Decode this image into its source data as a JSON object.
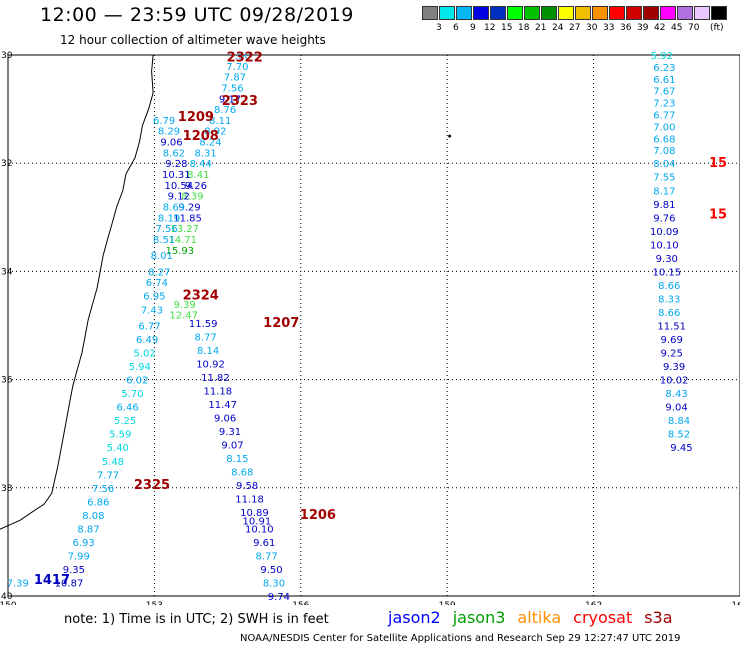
{
  "header": {
    "title": "12:00 — 23:59 UTC 09/28/2019",
    "subtitle": "12 hour collection of altimeter wave heights"
  },
  "colorbar": {
    "colors": [
      "#808080",
      "#00e8e8",
      "#00b8ff",
      "#0000e0",
      "#0030c0",
      "#00ff00",
      "#00c000",
      "#009000",
      "#ffff00",
      "#f0c000",
      "#ff9000",
      "#ff0000",
      "#d00000",
      "#a00000",
      "#ff00ff",
      "#b070e0",
      "#e8c8ff",
      "#000000"
    ],
    "labels": [
      "3",
      "6",
      "9",
      "12",
      "15",
      "18",
      "21",
      "24",
      "27",
      "30",
      "33",
      "36",
      "39",
      "42",
      "45",
      "70"
    ],
    "unit": "(ft)"
  },
  "footer": {
    "note": "note: 1) Time is in UTC; 2) SWH is in feet",
    "credit": "NOAA/NESDIS Center for Satellite Applications and Research   Sep 29 12:27:47 UTC 2019",
    "satellites": [
      {
        "name": "jason2",
        "color": "#0000ff"
      },
      {
        "name": "jason3",
        "color": "#00a000"
      },
      {
        "name": "altika",
        "color": "#ff9000"
      },
      {
        "name": "cryosat",
        "color": "#ff0000"
      },
      {
        "name": "s3a",
        "color": "#a00000"
      }
    ]
  },
  "chart_data": {
    "type": "scatter",
    "title": "12:00 — 23:59 UTC 09/28/2019",
    "subtitle": "12 hour collection of altimeter wave heights",
    "xlim": [
      150,
      165
    ],
    "ylim": [
      -40,
      -30
    ],
    "x_ticks": [
      "150",
      "153",
      "156",
      "159",
      "162",
      "165"
    ],
    "y_ticks": [
      "-30",
      "-32",
      "-34",
      "-36",
      "-38",
      "-40"
    ],
    "grid": true,
    "value_unit": "ft",
    "pass_labels": [
      {
        "text": "2322",
        "lon": 154.85,
        "lat": -30.05,
        "color": "#a00000"
      },
      {
        "text": "2323",
        "lon": 154.75,
        "lat": -30.85,
        "color": "#a00000"
      },
      {
        "text": "1209",
        "lon": 153.85,
        "lat": -31.15,
        "color": "#a00000"
      },
      {
        "text": "1208",
        "lon": 153.95,
        "lat": -31.5,
        "color": "#a00000"
      },
      {
        "text": "2324",
        "lon": 153.95,
        "lat": -34.45,
        "color": "#a00000"
      },
      {
        "text": "1207",
        "lon": 155.6,
        "lat": -34.95,
        "color": "#a00000"
      },
      {
        "text": "2325",
        "lon": 152.95,
        "lat": -37.95,
        "color": "#a00000"
      },
      {
        "text": "1206",
        "lon": 156.35,
        "lat": -38.5,
        "color": "#a00000"
      },
      {
        "text": "1417",
        "lon": 150.9,
        "lat": -39.7,
        "color": "#0000c0"
      },
      {
        "text": "15",
        "lon": 164.55,
        "lat": -32.0,
        "color": "#ff0000"
      },
      {
        "text": "15",
        "lon": 164.55,
        "lat": -32.95,
        "color": "#ff0000"
      }
    ],
    "series": [
      {
        "name": "pass 2322/2323",
        "points": [
          {
            "lon": 154.75,
            "lat": -30.0,
            "v": "7.50"
          },
          {
            "lon": 154.7,
            "lat": -30.2,
            "v": "7.70"
          },
          {
            "lon": 154.65,
            "lat": -30.4,
            "v": "7.87"
          },
          {
            "lon": 154.6,
            "lat": -30.6,
            "v": "7.56"
          },
          {
            "lon": 154.55,
            "lat": -30.8,
            "v": "9.17"
          },
          {
            "lon": 154.45,
            "lat": -31.0,
            "v": "8.76"
          },
          {
            "lon": 154.35,
            "lat": -31.2,
            "v": "8.11"
          },
          {
            "lon": 154.25,
            "lat": -31.4,
            "v": "8.92"
          },
          {
            "lon": 154.15,
            "lat": -31.6,
            "v": "8.24"
          },
          {
            "lon": 154.05,
            "lat": -31.8,
            "v": "8.31"
          },
          {
            "lon": 153.95,
            "lat": -32.0,
            "v": "8.44"
          },
          {
            "lon": 153.9,
            "lat": -32.2,
            "v": "8.41"
          },
          {
            "lon": 153.85,
            "lat": -32.4,
            "v": "9.26"
          },
          {
            "lon": 153.78,
            "lat": -32.6,
            "v": "8.39"
          },
          {
            "lon": 153.72,
            "lat": -32.8,
            "v": "9.29"
          },
          {
            "lon": 153.68,
            "lat": -33.0,
            "v": "11.85"
          },
          {
            "lon": 153.62,
            "lat": -33.2,
            "v": "13.27"
          },
          {
            "lon": 153.58,
            "lat": -33.4,
            "v": "14.71"
          },
          {
            "lon": 153.52,
            "lat": -33.6,
            "v": "15.93"
          },
          {
            "lon": 153.62,
            "lat": -34.6,
            "v": "9.39"
          },
          {
            "lon": 153.6,
            "lat": -34.8,
            "v": "12.47"
          }
        ]
      },
      {
        "name": "pass 1209",
        "points": [
          {
            "lon": 153.2,
            "lat": -31.2,
            "v": "6.79"
          },
          {
            "lon": 153.3,
            "lat": -31.4,
            "v": "8.29"
          },
          {
            "lon": 153.35,
            "lat": -31.6,
            "v": "9.06"
          },
          {
            "lon": 153.4,
            "lat": -31.8,
            "v": "8.62"
          },
          {
            "lon": 153.45,
            "lat": -32.0,
            "v": "9.28"
          },
          {
            "lon": 153.45,
            "lat": -32.2,
            "v": "10.31"
          },
          {
            "lon": 153.5,
            "lat": -32.4,
            "v": "10.54"
          },
          {
            "lon": 153.5,
            "lat": -32.6,
            "v": "9.12"
          },
          {
            "lon": 153.4,
            "lat": -32.8,
            "v": "8.69"
          },
          {
            "lon": 153.3,
            "lat": -33.0,
            "v": "8.19"
          },
          {
            "lon": 153.25,
            "lat": -33.2,
            "v": "7.56"
          },
          {
            "lon": 153.2,
            "lat": -33.4,
            "v": "8.51"
          },
          {
            "lon": 153.15,
            "lat": -33.7,
            "v": "8.01"
          },
          {
            "lon": 153.1,
            "lat": -34.0,
            "v": "8.27"
          },
          {
            "lon": 153.05,
            "lat": -34.2,
            "v": "6.74"
          },
          {
            "lon": 153.0,
            "lat": -34.45,
            "v": "6.95"
          },
          {
            "lon": 152.95,
            "lat": -34.7,
            "v": "7.43"
          },
          {
            "lon": 152.9,
            "lat": -35.0,
            "v": "6.77"
          },
          {
            "lon": 152.85,
            "lat": -35.25,
            "v": "6.49"
          },
          {
            "lon": 152.8,
            "lat": -35.5,
            "v": "5.02"
          },
          {
            "lon": 152.7,
            "lat": -35.75,
            "v": "5.94"
          },
          {
            "lon": 152.65,
            "lat": -36.0,
            "v": "6.02"
          },
          {
            "lon": 152.55,
            "lat": -36.25,
            "v": "5.70"
          },
          {
            "lon": 152.45,
            "lat": -36.5,
            "v": "6.46"
          },
          {
            "lon": 152.4,
            "lat": -36.75,
            "v": "5.25"
          },
          {
            "lon": 152.3,
            "lat": -37.0,
            "v": "5.59"
          },
          {
            "lon": 152.25,
            "lat": -37.25,
            "v": "5.40"
          },
          {
            "lon": 152.15,
            "lat": -37.5,
            "v": "5.48"
          },
          {
            "lon": 152.05,
            "lat": -37.75,
            "v": "7.77"
          },
          {
            "lon": 151.95,
            "lat": -38.0,
            "v": "7.56"
          },
          {
            "lon": 151.85,
            "lat": -38.25,
            "v": "6.86"
          },
          {
            "lon": 151.75,
            "lat": -38.5,
            "v": "8.08"
          },
          {
            "lon": 151.65,
            "lat": -38.75,
            "v": "8.87"
          },
          {
            "lon": 151.55,
            "lat": -39.0,
            "v": "6.93"
          },
          {
            "lon": 151.45,
            "lat": -39.25,
            "v": "7.99"
          },
          {
            "lon": 151.35,
            "lat": -39.5,
            "v": "9.35"
          },
          {
            "lon": 151.25,
            "lat": -39.75,
            "v": "10.87"
          },
          {
            "lon": 150.2,
            "lat": -39.75,
            "v": "7.39"
          }
        ]
      },
      {
        "name": "pass 1207/1206",
        "points": [
          {
            "lon": 154.0,
            "lat": -34.95,
            "v": "11.59"
          },
          {
            "lon": 154.05,
            "lat": -35.2,
            "v": "8.77"
          },
          {
            "lon": 154.1,
            "lat": -35.45,
            "v": "8.14"
          },
          {
            "lon": 154.15,
            "lat": -35.7,
            "v": "10.92"
          },
          {
            "lon": 154.25,
            "lat": -35.95,
            "v": "11.82"
          },
          {
            "lon": 154.3,
            "lat": -36.2,
            "v": "11.18"
          },
          {
            "lon": 154.4,
            "lat": -36.45,
            "v": "11.47"
          },
          {
            "lon": 154.45,
            "lat": -36.7,
            "v": "9.06"
          },
          {
            "lon": 154.55,
            "lat": -36.95,
            "v": "9.31"
          },
          {
            "lon": 154.6,
            "lat": -37.2,
            "v": "9.07"
          },
          {
            "lon": 154.7,
            "lat": -37.45,
            "v": "8.15"
          },
          {
            "lon": 154.8,
            "lat": -37.7,
            "v": "8.68"
          },
          {
            "lon": 154.9,
            "lat": -37.95,
            "v": "9.58"
          },
          {
            "lon": 154.95,
            "lat": -38.2,
            "v": "11.18"
          },
          {
            "lon": 155.05,
            "lat": -38.45,
            "v": "10.89"
          },
          {
            "lon": 155.1,
            "lat": -38.6,
            "v": "10.91"
          },
          {
            "lon": 155.15,
            "lat": -38.75,
            "v": "10.10"
          },
          {
            "lon": 155.25,
            "lat": -39.0,
            "v": "9.61"
          },
          {
            "lon": 155.3,
            "lat": -39.25,
            "v": "8.77"
          },
          {
            "lon": 155.4,
            "lat": -39.5,
            "v": "9.50"
          },
          {
            "lon": 155.45,
            "lat": -39.75,
            "v": "8.30"
          },
          {
            "lon": 155.55,
            "lat": -40.0,
            "v": "9.74"
          }
        ]
      },
      {
        "name": "east pass",
        "points": [
          {
            "lon": 163.4,
            "lat": -30.0,
            "v": "5.92"
          },
          {
            "lon": 163.45,
            "lat": -30.22,
            "v": "6.23"
          },
          {
            "lon": 163.45,
            "lat": -30.44,
            "v": "6.61"
          },
          {
            "lon": 163.45,
            "lat": -30.66,
            "v": "7.67"
          },
          {
            "lon": 163.45,
            "lat": -30.88,
            "v": "7.23"
          },
          {
            "lon": 163.45,
            "lat": -31.1,
            "v": "6.77"
          },
          {
            "lon": 163.45,
            "lat": -31.32,
            "v": "7.00"
          },
          {
            "lon": 163.45,
            "lat": -31.54,
            "v": "6.68"
          },
          {
            "lon": 163.45,
            "lat": -31.76,
            "v": "7.08"
          },
          {
            "lon": 163.45,
            "lat": -32.0,
            "v": "8.04"
          },
          {
            "lon": 163.45,
            "lat": -32.25,
            "v": "7.55"
          },
          {
            "lon": 163.45,
            "lat": -32.5,
            "v": "8.17"
          },
          {
            "lon": 163.45,
            "lat": -32.75,
            "v": "9.81"
          },
          {
            "lon": 163.45,
            "lat": -33.0,
            "v": "9.76"
          },
          {
            "lon": 163.45,
            "lat": -33.25,
            "v": "10.09"
          },
          {
            "lon": 163.45,
            "lat": -33.5,
            "v": "10.10"
          },
          {
            "lon": 163.5,
            "lat": -33.75,
            "v": "9.30"
          },
          {
            "lon": 163.5,
            "lat": -34.0,
            "v": "10.15"
          },
          {
            "lon": 163.55,
            "lat": -34.25,
            "v": "8.66"
          },
          {
            "lon": 163.55,
            "lat": -34.5,
            "v": "8.33"
          },
          {
            "lon": 163.55,
            "lat": -34.75,
            "v": "8.66"
          },
          {
            "lon": 163.6,
            "lat": -35.0,
            "v": "11.51"
          },
          {
            "lon": 163.6,
            "lat": -35.25,
            "v": "9.69"
          },
          {
            "lon": 163.6,
            "lat": -35.5,
            "v": "9.25"
          },
          {
            "lon": 163.65,
            "lat": -35.75,
            "v": "9.39"
          },
          {
            "lon": 163.65,
            "lat": -36.0,
            "v": "10.02"
          },
          {
            "lon": 163.7,
            "lat": -36.25,
            "v": "8.43"
          },
          {
            "lon": 163.7,
            "lat": -36.5,
            "v": "9.04"
          },
          {
            "lon": 163.75,
            "lat": -36.75,
            "v": "8.84"
          },
          {
            "lon": 163.75,
            "lat": -37.0,
            "v": "8.52"
          },
          {
            "lon": 163.8,
            "lat": -37.25,
            "v": "9.45"
          }
        ]
      }
    ]
  }
}
